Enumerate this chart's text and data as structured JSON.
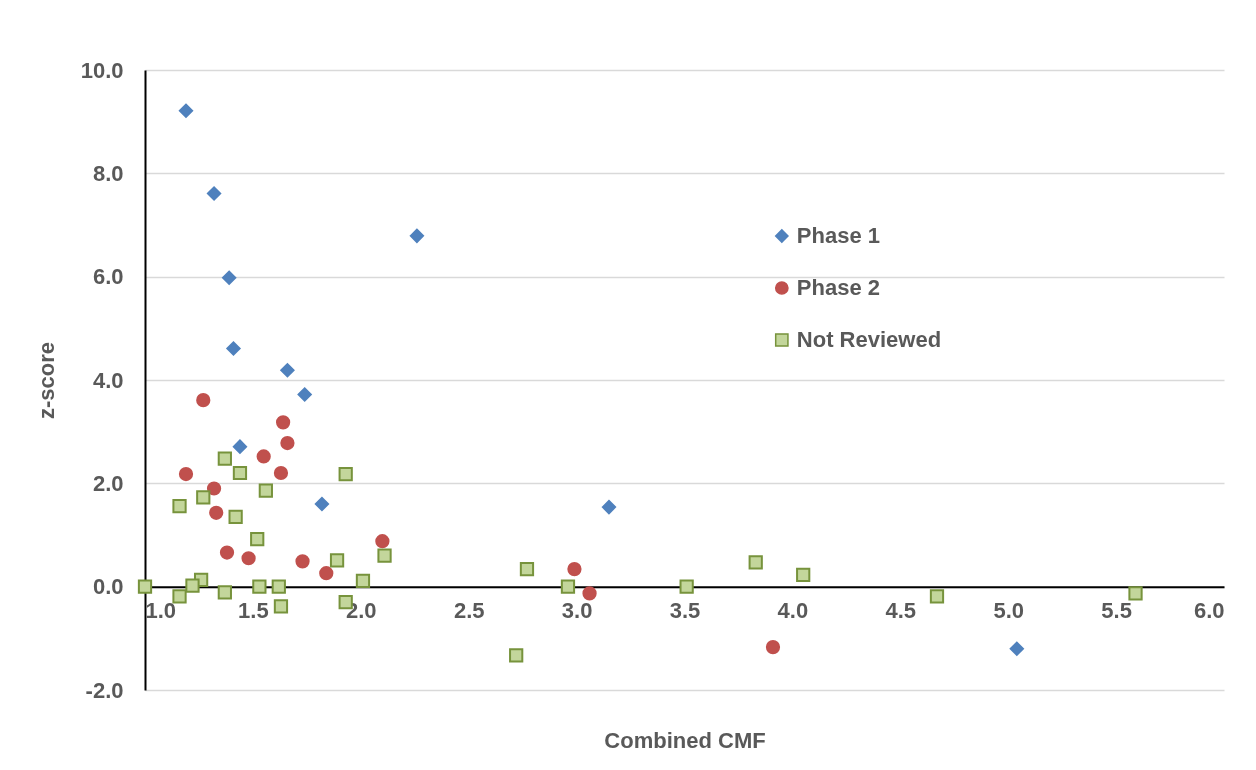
{
  "chart_data": {
    "type": "scatter",
    "xlabel": "Combined CMF",
    "ylabel": "z-score",
    "xlim": [
      1,
      6
    ],
    "ylim": [
      -2,
      10
    ],
    "xticks": [
      {
        "value": 1,
        "label": "1.0"
      },
      {
        "value": 1.5,
        "label": "1.5"
      },
      {
        "value": 2,
        "label": "2.0"
      },
      {
        "value": 2.5,
        "label": "2.5"
      },
      {
        "value": 3,
        "label": "3.0"
      },
      {
        "value": 3.5,
        "label": "3.5"
      },
      {
        "value": 4,
        "label": "4.0"
      },
      {
        "value": 4.5,
        "label": "4.5"
      },
      {
        "value": 5,
        "label": "5.0"
      },
      {
        "value": 5.5,
        "label": "5.5"
      },
      {
        "value": 6,
        "label": "6.0"
      }
    ],
    "yticks": [
      {
        "value": -2,
        "label": "-2.0"
      },
      {
        "value": 0,
        "label": "0.0"
      },
      {
        "value": 2,
        "label": "2.0"
      },
      {
        "value": 4,
        "label": "4.0"
      },
      {
        "value": 6,
        "label": "6.0"
      },
      {
        "value": 8,
        "label": "8.0"
      },
      {
        "value": 10,
        "label": "10.0"
      }
    ],
    "grid": "y",
    "legend": "top right",
    "series": [
      {
        "name": "Phase 1",
        "color": "#4f81bd",
        "marker": "diamond",
        "x": [
          1.19,
          1.32,
          1.39,
          1.41,
          1.66,
          1.74,
          1.44,
          1.82,
          2.26,
          3.15,
          5.04
        ],
        "values": [
          9.21,
          7.61,
          5.98,
          4.61,
          4.19,
          3.72,
          2.71,
          1.6,
          6.79,
          1.54,
          -1.2
        ]
      },
      {
        "name": "Phase 2",
        "color": "#c0504d",
        "marker": "circle",
        "x": [
          1.27,
          1.64,
          1.66,
          1.55,
          1.63,
          1.19,
          1.32,
          1.33,
          1.38,
          1.48,
          1.73,
          1.84,
          2.1,
          2.99,
          3.06,
          3.91
        ],
        "values": [
          3.61,
          3.18,
          2.78,
          2.52,
          2.2,
          2.18,
          1.9,
          1.43,
          0.66,
          0.55,
          0.49,
          0.26,
          0.88,
          0.34,
          -0.13,
          -1.17
        ]
      },
      {
        "name": "Not Reviewed",
        "color": "#c3d69b",
        "marker": "square",
        "x": [
          1.0,
          1.16,
          1.27,
          1.37,
          1.44,
          1.42,
          1.56,
          1.52,
          1.93,
          1.89,
          2.11,
          1.26,
          1.22,
          1.16,
          1.37,
          1.53,
          1.62,
          1.63,
          1.93,
          2.01,
          2.77,
          2.96,
          2.72,
          3.51,
          3.83,
          4.05,
          4.67,
          5.59
        ],
        "values": [
          0,
          1.56,
          1.73,
          2.48,
          2.2,
          1.35,
          1.86,
          0.92,
          2.18,
          0.51,
          0.6,
          0.13,
          0.02,
          -0.19,
          -0.11,
          0,
          0,
          -0.38,
          -0.3,
          0.11,
          0.34,
          0,
          -1.33,
          0,
          0.47,
          0.23,
          -0.19,
          -0.13
        ]
      }
    ]
  }
}
